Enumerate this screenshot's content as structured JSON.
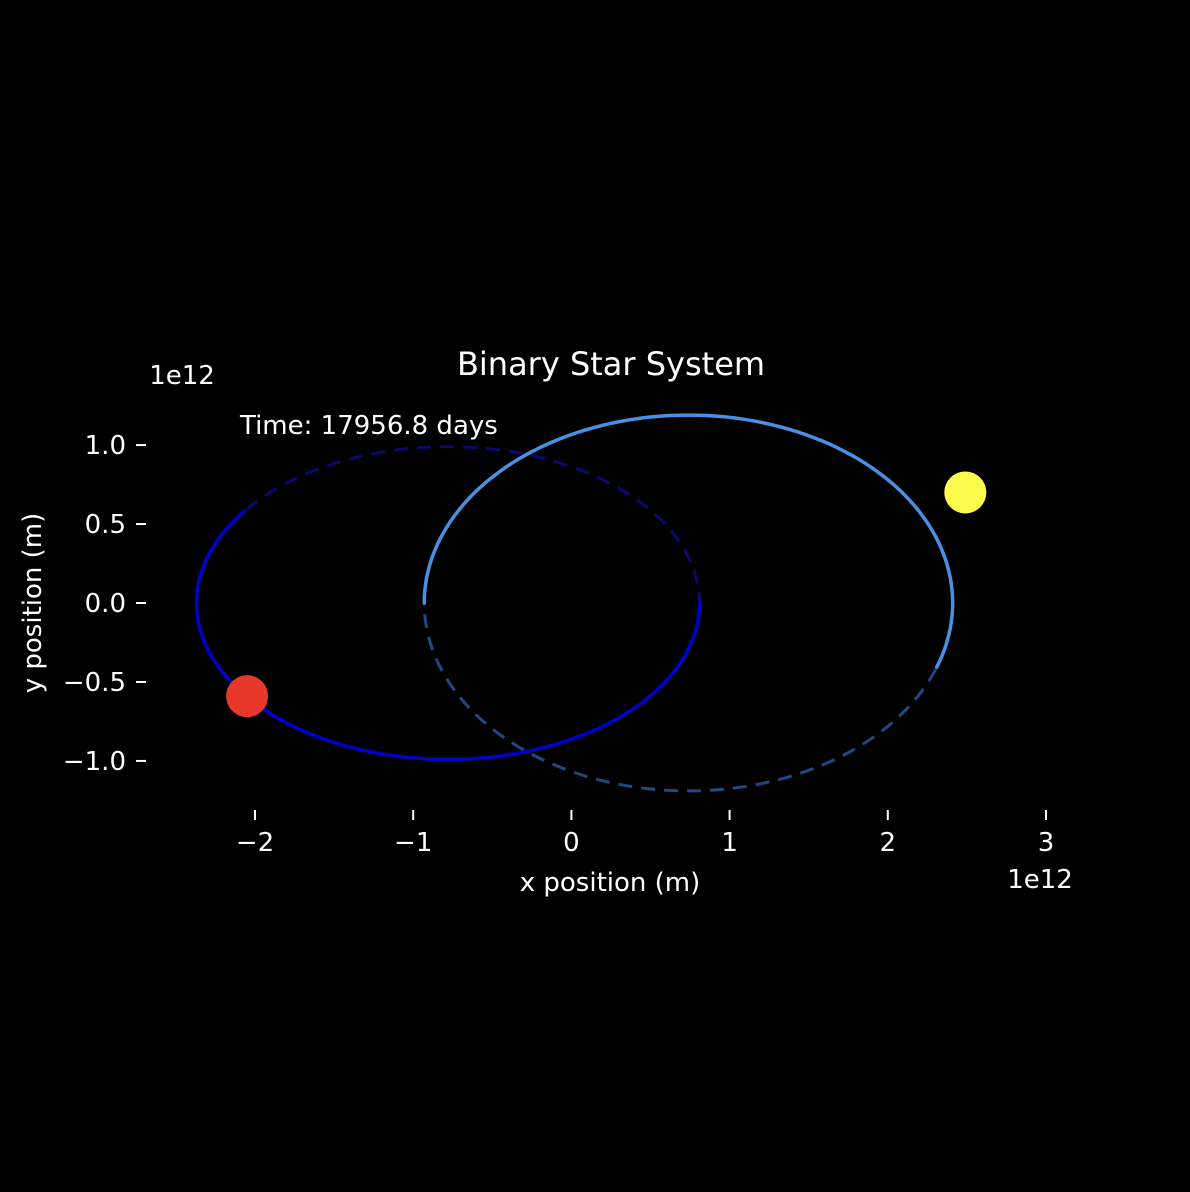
{
  "chart_data": {
    "type": "line",
    "title": "Binary Star System",
    "xlabel": "x position (m)",
    "ylabel": "y position (m)",
    "x_offset_label": "1e12",
    "y_offset_label": "1e12",
    "annotation": "Time: 17956.8 days",
    "xlim": [
      -2050000000000.0,
      3000000000000.0
    ],
    "ylim": [
      -1300000000000.0,
      1200000000000.0
    ],
    "xticks": [
      -2000000000000.0,
      -1000000000000.0,
      0,
      1000000000000.0,
      2000000000000.0,
      3000000000000.0
    ],
    "xtick_labels": [
      "−2",
      "−1",
      "0",
      "1",
      "2",
      "3"
    ],
    "yticks": [
      -1000000000000.0,
      -500000000000.0,
      0,
      500000000000.0,
      1000000000000.0
    ],
    "ytick_labels": [
      "−1.0",
      "−0.5",
      "0.0",
      "0.5",
      "1.0"
    ],
    "grid": false,
    "background": "#000000",
    "orbits": [
      {
        "center": [
          -780000000000.0,
          0.0
        ],
        "semi_axes": [
          1590000000000.0,
          990000000000.0
        ],
        "color": "#0000cd",
        "trail_start_deg": 0,
        "trail_end_deg": 216,
        "ghost_color": "#0a0a6e"
      },
      {
        "center": [
          740000000000.0,
          0.0
        ],
        "semi_axes": [
          1670000000000.0,
          1190000000000.0
        ],
        "color": "#4a90e2",
        "trail_start_deg": 180,
        "trail_end_deg": 380,
        "ghost_color": "#1e4a80"
      }
    ],
    "stars": [
      {
        "x": -2050000000000.0,
        "y": -590000000000.0,
        "color": "#e8372b"
      },
      {
        "x": 2490000000000.0,
        "y": 700000000000.0,
        "color": "#fbfc4c"
      }
    ]
  }
}
